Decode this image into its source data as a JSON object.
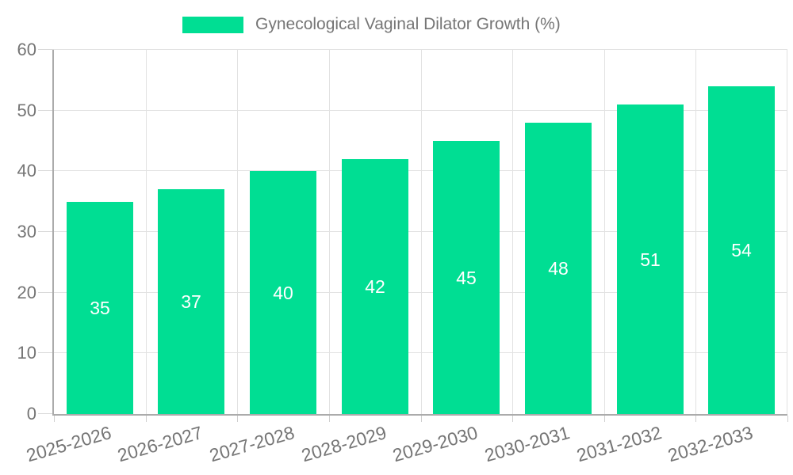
{
  "legend": {
    "label": "Gynecological Vaginal Dilator Growth (%)"
  },
  "chart_data": {
    "type": "bar",
    "title": "Gynecological Vaginal Dilator Growth (%)",
    "categories": [
      "2025-2026",
      "2026-2027",
      "2027-2028",
      "2028-2029",
      "2029-2030",
      "2030-2031",
      "2031-2032",
      "2032-2033"
    ],
    "values": [
      35,
      37,
      40,
      42,
      45,
      48,
      51,
      54
    ],
    "xlabel": "",
    "ylabel": "",
    "ylim": [
      0,
      60
    ],
    "yticks": [
      0,
      10,
      20,
      30,
      40,
      50,
      60
    ],
    "grid": true,
    "legend_position": "top-center",
    "x_label_rotation_deg": -16,
    "colors": {
      "bar": "#00DE93",
      "bar_label": "#FFFFFF",
      "axis_text": "#757575",
      "grid_line": "#E2E2E2",
      "axis_line": "#ABABAB",
      "background": "#FFFFFF"
    }
  }
}
